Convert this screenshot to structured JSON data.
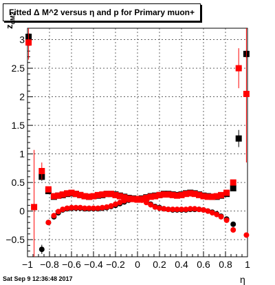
{
  "title": "Fitted Δ M^2 versus η and p for Primary muon+",
  "timestamp": "Sat Sep  9 12:36:48 2017",
  "chart_data": {
    "type": "scatter",
    "title": "Fitted Δ M^2 versus η and p for Primary muon+",
    "xlabel": "η",
    "ylabel": "z_{dM2}",
    "xlim": [
      -1,
      1
    ],
    "ylim": [
      -0.8,
      3.2
    ],
    "grid": true,
    "x_ticks": [
      -1,
      -0.8,
      -0.6,
      -0.4,
      -0.2,
      0,
      0.2,
      0.4,
      0.6,
      0.8,
      1
    ],
    "x_tick_labels": [
      "−1",
      "−0.8",
      "−0.6",
      "−0.4",
      "−0.2",
      "0",
      "0.2",
      "0.4",
      "0.6",
      "0.8",
      "1"
    ],
    "y_ticks": [
      -0.5,
      0,
      0.5,
      1,
      1.5,
      2,
      2.5,
      3
    ],
    "y_tick_labels": [
      "−0.5",
      "0",
      "0.5",
      "1",
      "1.5",
      "2",
      "2.5",
      "3"
    ],
    "colors": {
      "black": "#000000",
      "red": "#ff0000"
    },
    "series": [
      {
        "marker": "square",
        "color": "#000000",
        "points": [
          {
            "x": -0.99,
            "y": 3.05,
            "err": 0.05
          },
          {
            "x": -0.87,
            "y": 0.6,
            "err": 0.07
          },
          {
            "x": -0.81,
            "y": 0.35
          },
          {
            "x": -0.76,
            "y": 0.25
          },
          {
            "x": -0.72,
            "y": 0.27
          },
          {
            "x": -0.68,
            "y": 0.28
          },
          {
            "x": -0.64,
            "y": 0.3
          },
          {
            "x": -0.6,
            "y": 0.31
          },
          {
            "x": -0.56,
            "y": 0.3
          },
          {
            "x": -0.52,
            "y": 0.28
          },
          {
            "x": -0.48,
            "y": 0.26
          },
          {
            "x": -0.44,
            "y": 0.25
          },
          {
            "x": -0.4,
            "y": 0.26
          },
          {
            "x": -0.36,
            "y": 0.27
          },
          {
            "x": -0.32,
            "y": 0.28
          },
          {
            "x": -0.28,
            "y": 0.3
          },
          {
            "x": -0.24,
            "y": 0.3
          },
          {
            "x": -0.2,
            "y": 0.29
          },
          {
            "x": -0.16,
            "y": 0.27
          },
          {
            "x": -0.12,
            "y": 0.25
          },
          {
            "x": -0.08,
            "y": 0.23
          },
          {
            "x": -0.04,
            "y": 0.22
          },
          {
            "x": 0.0,
            "y": 0.21
          },
          {
            "x": 0.04,
            "y": 0.22
          },
          {
            "x": 0.08,
            "y": 0.24
          },
          {
            "x": 0.12,
            "y": 0.26
          },
          {
            "x": 0.16,
            "y": 0.27
          },
          {
            "x": 0.2,
            "y": 0.28
          },
          {
            "x": 0.24,
            "y": 0.3
          },
          {
            "x": 0.28,
            "y": 0.3
          },
          {
            "x": 0.32,
            "y": 0.29
          },
          {
            "x": 0.36,
            "y": 0.28
          },
          {
            "x": 0.4,
            "y": 0.29
          },
          {
            "x": 0.44,
            "y": 0.31
          },
          {
            "x": 0.48,
            "y": 0.32
          },
          {
            "x": 0.52,
            "y": 0.31
          },
          {
            "x": 0.56,
            "y": 0.29
          },
          {
            "x": 0.6,
            "y": 0.27
          },
          {
            "x": 0.64,
            "y": 0.26
          },
          {
            "x": 0.68,
            "y": 0.25
          },
          {
            "x": 0.72,
            "y": 0.25
          },
          {
            "x": 0.76,
            "y": 0.27
          },
          {
            "x": 0.81,
            "y": 0.3
          },
          {
            "x": 0.87,
            "y": 0.4
          },
          {
            "x": 0.92,
            "y": 1.27,
            "err": 0.15
          },
          {
            "x": 0.99,
            "y": 2.75,
            "err": 0.07
          }
        ]
      },
      {
        "marker": "circle",
        "color": "#000000",
        "points": [
          {
            "x": -0.87,
            "y": -0.67,
            "err": 0.08
          },
          {
            "x": -0.81,
            "y": -0.2
          },
          {
            "x": -0.76,
            "y": -0.1
          },
          {
            "x": -0.72,
            "y": -0.03
          },
          {
            "x": -0.68,
            "y": 0.02
          },
          {
            "x": -0.64,
            "y": 0.04
          },
          {
            "x": -0.6,
            "y": 0.05
          },
          {
            "x": -0.56,
            "y": 0.05
          },
          {
            "x": -0.52,
            "y": 0.05
          },
          {
            "x": -0.48,
            "y": 0.04
          },
          {
            "x": -0.44,
            "y": 0.04
          },
          {
            "x": -0.4,
            "y": 0.04
          },
          {
            "x": -0.36,
            "y": 0.04
          },
          {
            "x": -0.32,
            "y": 0.05
          },
          {
            "x": -0.28,
            "y": 0.06
          },
          {
            "x": -0.24,
            "y": 0.08
          },
          {
            "x": -0.2,
            "y": 0.1
          },
          {
            "x": -0.16,
            "y": 0.13
          },
          {
            "x": -0.12,
            "y": 0.16
          },
          {
            "x": -0.08,
            "y": 0.19
          },
          {
            "x": -0.04,
            "y": 0.21
          },
          {
            "x": 0.0,
            "y": 0.22
          },
          {
            "x": 0.04,
            "y": 0.2
          },
          {
            "x": 0.08,
            "y": 0.16
          },
          {
            "x": 0.12,
            "y": 0.12
          },
          {
            "x": 0.16,
            "y": 0.08
          },
          {
            "x": 0.2,
            "y": 0.06
          },
          {
            "x": 0.24,
            "y": 0.04
          },
          {
            "x": 0.28,
            "y": 0.03
          },
          {
            "x": 0.32,
            "y": 0.02
          },
          {
            "x": 0.36,
            "y": 0.02
          },
          {
            "x": 0.4,
            "y": 0.02
          },
          {
            "x": 0.44,
            "y": 0.02
          },
          {
            "x": 0.48,
            "y": 0.03
          },
          {
            "x": 0.52,
            "y": 0.03
          },
          {
            "x": 0.56,
            "y": 0.03
          },
          {
            "x": 0.6,
            "y": 0.02
          },
          {
            "x": 0.64,
            "y": 0.0
          },
          {
            "x": 0.68,
            "y": -0.02
          },
          {
            "x": 0.72,
            "y": -0.05
          },
          {
            "x": 0.76,
            "y": -0.09
          },
          {
            "x": 0.81,
            "y": -0.14
          },
          {
            "x": 0.87,
            "y": -0.23
          }
        ]
      },
      {
        "marker": "square",
        "color": "#ff0000",
        "points": [
          {
            "x": -0.99,
            "y": 2.95,
            "err": 0.3
          },
          {
            "x": -0.94,
            "y": 0.07,
            "err": 1.0
          },
          {
            "x": -0.87,
            "y": 0.7,
            "err": 0.15
          },
          {
            "x": -0.81,
            "y": 0.38
          },
          {
            "x": -0.76,
            "y": 0.26
          },
          {
            "x": -0.72,
            "y": 0.27
          },
          {
            "x": -0.68,
            "y": 0.29
          },
          {
            "x": -0.64,
            "y": 0.31
          },
          {
            "x": -0.6,
            "y": 0.32
          },
          {
            "x": -0.56,
            "y": 0.3
          },
          {
            "x": -0.52,
            "y": 0.28
          },
          {
            "x": -0.48,
            "y": 0.26
          },
          {
            "x": -0.44,
            "y": 0.25
          },
          {
            "x": -0.4,
            "y": 0.26
          },
          {
            "x": -0.36,
            "y": 0.28
          },
          {
            "x": -0.32,
            "y": 0.29
          },
          {
            "x": -0.28,
            "y": 0.3
          },
          {
            "x": -0.24,
            "y": 0.3
          },
          {
            "x": -0.2,
            "y": 0.28
          },
          {
            "x": -0.16,
            "y": 0.26
          },
          {
            "x": -0.12,
            "y": 0.24
          },
          {
            "x": -0.08,
            "y": 0.22
          },
          {
            "x": -0.04,
            "y": 0.21
          },
          {
            "x": 0.0,
            "y": 0.2
          },
          {
            "x": 0.04,
            "y": 0.21
          },
          {
            "x": 0.08,
            "y": 0.23
          },
          {
            "x": 0.12,
            "y": 0.25
          },
          {
            "x": 0.16,
            "y": 0.26
          },
          {
            "x": 0.2,
            "y": 0.28
          },
          {
            "x": 0.24,
            "y": 0.29
          },
          {
            "x": 0.28,
            "y": 0.29
          },
          {
            "x": 0.32,
            "y": 0.28
          },
          {
            "x": 0.36,
            "y": 0.27
          },
          {
            "x": 0.4,
            "y": 0.28
          },
          {
            "x": 0.44,
            "y": 0.3
          },
          {
            "x": 0.48,
            "y": 0.31
          },
          {
            "x": 0.52,
            "y": 0.3
          },
          {
            "x": 0.56,
            "y": 0.28
          },
          {
            "x": 0.6,
            "y": 0.26
          },
          {
            "x": 0.64,
            "y": 0.25
          },
          {
            "x": 0.68,
            "y": 0.25
          },
          {
            "x": 0.72,
            "y": 0.26
          },
          {
            "x": 0.76,
            "y": 0.28
          },
          {
            "x": 0.81,
            "y": 0.32
          },
          {
            "x": 0.87,
            "y": 0.5
          },
          {
            "x": 0.92,
            "y": 2.5,
            "err": 0.35
          },
          {
            "x": 0.99,
            "y": 2.05,
            "err": 1.2
          }
        ]
      },
      {
        "marker": "circle",
        "color": "#ff0000",
        "points": [
          {
            "x": -0.81,
            "y": -0.2
          },
          {
            "x": -0.76,
            "y": -0.08
          },
          {
            "x": -0.72,
            "y": -0.01
          },
          {
            "x": -0.68,
            "y": 0.03
          },
          {
            "x": -0.64,
            "y": 0.05
          },
          {
            "x": -0.6,
            "y": 0.06
          },
          {
            "x": -0.56,
            "y": 0.06
          },
          {
            "x": -0.52,
            "y": 0.06
          },
          {
            "x": -0.48,
            "y": 0.05
          },
          {
            "x": -0.44,
            "y": 0.05
          },
          {
            "x": -0.4,
            "y": 0.05
          },
          {
            "x": -0.36,
            "y": 0.05
          },
          {
            "x": -0.32,
            "y": 0.06
          },
          {
            "x": -0.28,
            "y": 0.07
          },
          {
            "x": -0.24,
            "y": 0.09
          },
          {
            "x": -0.2,
            "y": 0.12
          },
          {
            "x": -0.16,
            "y": 0.15
          },
          {
            "x": -0.12,
            "y": 0.18
          },
          {
            "x": -0.08,
            "y": 0.2
          },
          {
            "x": -0.04,
            "y": 0.22
          },
          {
            "x": 0.0,
            "y": 0.22
          },
          {
            "x": 0.04,
            "y": 0.19
          },
          {
            "x": 0.08,
            "y": 0.15
          },
          {
            "x": 0.12,
            "y": 0.11
          },
          {
            "x": 0.16,
            "y": 0.07
          },
          {
            "x": 0.2,
            "y": 0.05
          },
          {
            "x": 0.24,
            "y": 0.04
          },
          {
            "x": 0.28,
            "y": 0.03
          },
          {
            "x": 0.32,
            "y": 0.03
          },
          {
            "x": 0.36,
            "y": 0.03
          },
          {
            "x": 0.4,
            "y": 0.03
          },
          {
            "x": 0.44,
            "y": 0.03
          },
          {
            "x": 0.48,
            "y": 0.04
          },
          {
            "x": 0.52,
            "y": 0.04
          },
          {
            "x": 0.56,
            "y": 0.03
          },
          {
            "x": 0.6,
            "y": 0.02
          },
          {
            "x": 0.64,
            "y": 0.0
          },
          {
            "x": 0.68,
            "y": -0.03
          },
          {
            "x": 0.72,
            "y": -0.06
          },
          {
            "x": 0.76,
            "y": -0.1
          },
          {
            "x": 0.81,
            "y": -0.16
          },
          {
            "x": 0.87,
            "y": -0.33
          },
          {
            "x": 0.99,
            "y": -0.42
          }
        ]
      }
    ]
  }
}
